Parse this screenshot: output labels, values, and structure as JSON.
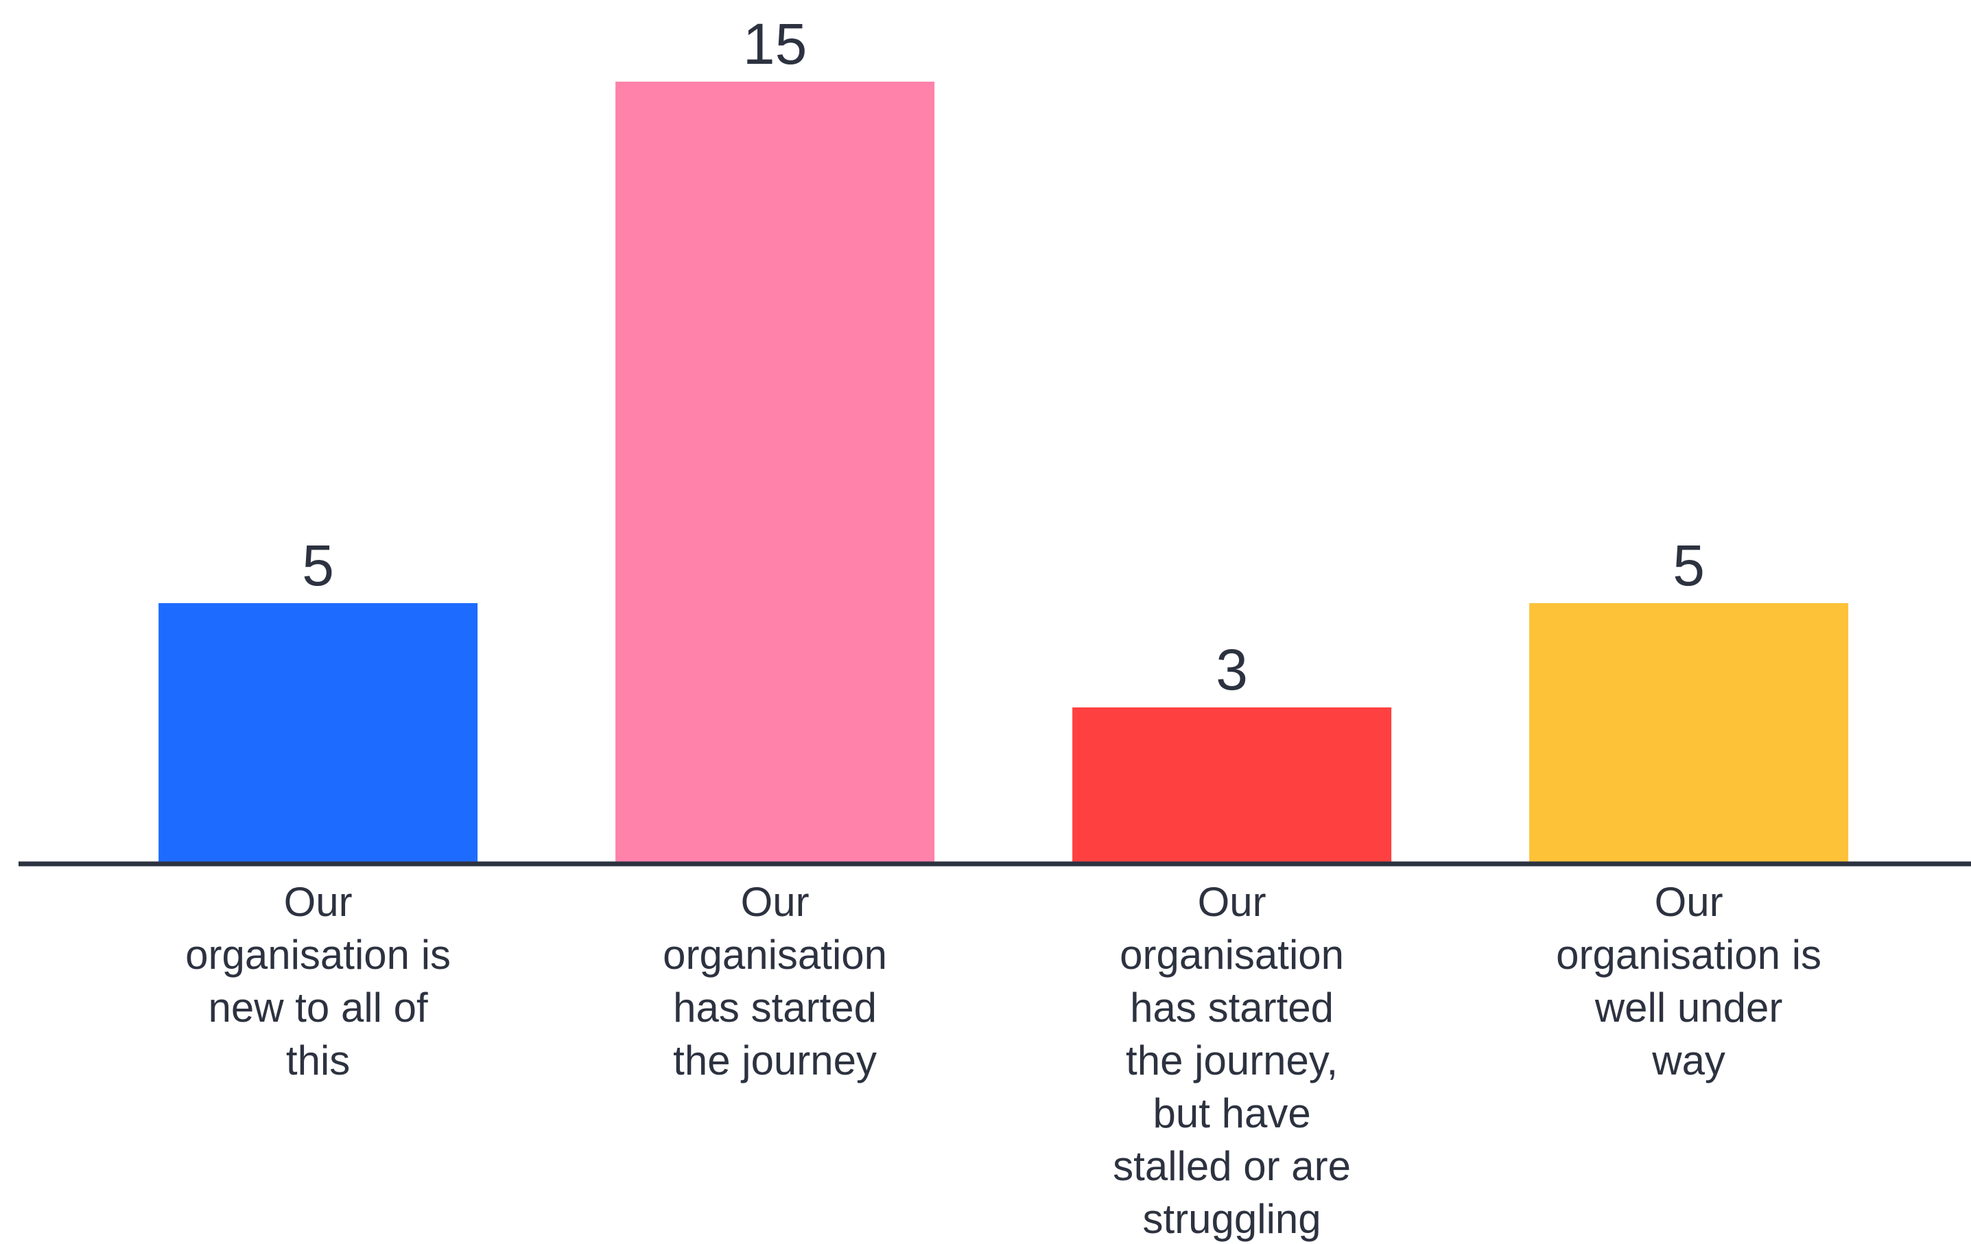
{
  "chart_data": {
    "type": "bar",
    "categories": [
      "Our organisation is new to all of this",
      "Our organisation has started the journey",
      "Our organisation has started the journey, but have stalled or are struggling",
      "Our organisation is well under way"
    ],
    "values": [
      5,
      15,
      3,
      5
    ],
    "colors": [
      "#1e6bff",
      "#ff82aa",
      "#ff4040",
      "#fdc238"
    ]
  }
}
